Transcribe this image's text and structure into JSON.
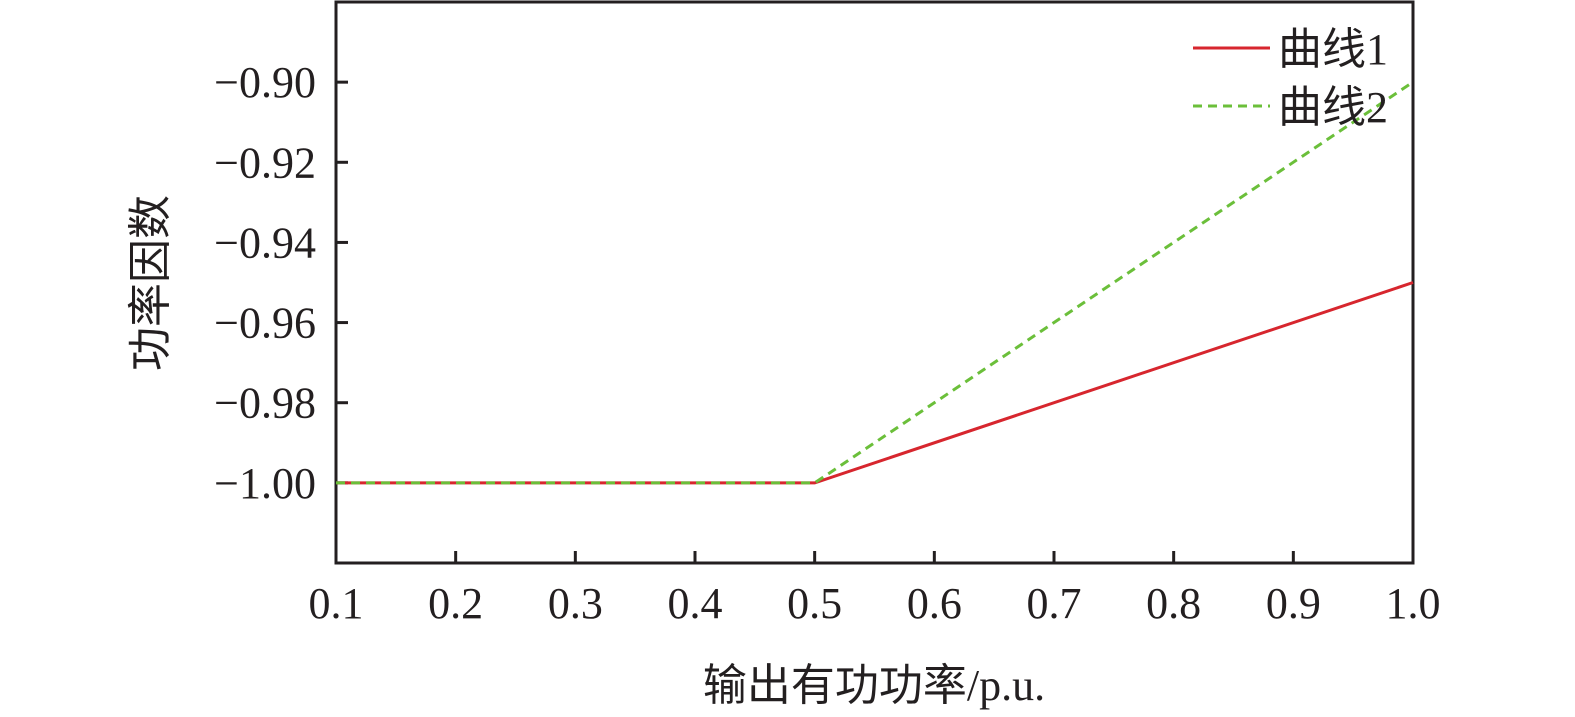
{
  "chart_data": {
    "type": "line",
    "xlabel": "输出有功功率/p.u.",
    "ylabel": "功率因数",
    "xlim": [
      0.1,
      1.0
    ],
    "ylim": [
      -1.02,
      -0.88
    ],
    "x_ticks": [
      0.1,
      0.2,
      0.3,
      0.4,
      0.5,
      0.6,
      0.7,
      0.8,
      0.9,
      1.0
    ],
    "x_tick_labels": [
      "0.1",
      "0.2",
      "0.3",
      "0.4",
      "0.5",
      "0.6",
      "0.7",
      "0.8",
      "0.9",
      "1.0"
    ],
    "y_ticks": [
      -1.0,
      -0.98,
      -0.96,
      -0.94,
      -0.92,
      -0.9
    ],
    "y_tick_labels": [
      "−1.00",
      "−0.98",
      "−0.96",
      "−0.94",
      "−0.92",
      "−0.90"
    ],
    "grid": false,
    "legend_position": "top-right",
    "series": [
      {
        "name": "曲线1",
        "color": "#d7262e",
        "dash": "solid",
        "x": [
          0.1,
          0.5,
          1.0
        ],
        "y": [
          -1.0,
          -1.0,
          -0.95
        ]
      },
      {
        "name": "曲线2",
        "color": "#6bbf3a",
        "dash": "dashed",
        "x": [
          0.1,
          0.5,
          1.0
        ],
        "y": [
          -1.0,
          -1.0,
          -0.9
        ]
      }
    ]
  }
}
